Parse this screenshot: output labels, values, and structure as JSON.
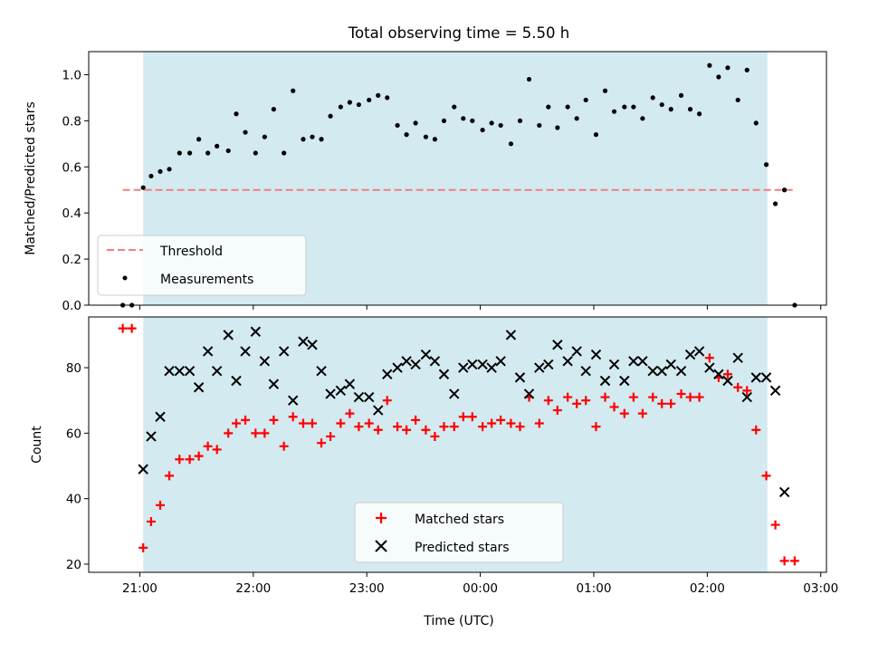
{
  "chart_data": [
    {
      "type": "scatter",
      "title": "Total observing time = 5.50 h",
      "xlabel": "",
      "ylabel": "Matched/Predicted stars",
      "xlim": [
        -0.45,
        6.05
      ],
      "ylim": [
        0.0,
        1.1
      ],
      "yticks": [
        0.0,
        0.2,
        0.4,
        0.6,
        0.8,
        1.0
      ],
      "ytick_labels": [
        "0.0",
        "0.2",
        "0.4",
        "0.6",
        "0.8",
        "1.0"
      ],
      "grid": false,
      "legend_position": "lower-left",
      "shaded_span": {
        "x_start": 0.03,
        "x_end": 5.53,
        "color": "#d3eaf0"
      },
      "threshold": {
        "name": "Threshold",
        "y": 0.5,
        "x_start": -0.15,
        "x_end": 5.78,
        "color": "#f08080"
      },
      "series": [
        {
          "name": "Measurements",
          "color": "#000000",
          "points": [
            [
              -0.15,
              0.0
            ],
            [
              -0.07,
              0.0
            ],
            [
              0.03,
              0.51
            ],
            [
              0.1,
              0.56
            ],
            [
              0.18,
              0.58
            ],
            [
              0.26,
              0.59
            ],
            [
              0.35,
              0.66
            ],
            [
              0.44,
              0.66
            ],
            [
              0.52,
              0.72
            ],
            [
              0.6,
              0.66
            ],
            [
              0.68,
              0.69
            ],
            [
              0.78,
              0.67
            ],
            [
              0.85,
              0.83
            ],
            [
              0.93,
              0.75
            ],
            [
              1.02,
              0.66
            ],
            [
              1.1,
              0.73
            ],
            [
              1.18,
              0.85
            ],
            [
              1.27,
              0.66
            ],
            [
              1.35,
              0.93
            ],
            [
              1.44,
              0.72
            ],
            [
              1.52,
              0.73
            ],
            [
              1.6,
              0.72
            ],
            [
              1.68,
              0.82
            ],
            [
              1.77,
              0.86
            ],
            [
              1.85,
              0.88
            ],
            [
              1.93,
              0.87
            ],
            [
              2.02,
              0.89
            ],
            [
              2.1,
              0.91
            ],
            [
              2.18,
              0.9
            ],
            [
              2.27,
              0.78
            ],
            [
              2.35,
              0.74
            ],
            [
              2.43,
              0.79
            ],
            [
              2.52,
              0.73
            ],
            [
              2.6,
              0.72
            ],
            [
              2.68,
              0.8
            ],
            [
              2.77,
              0.86
            ],
            [
              2.85,
              0.81
            ],
            [
              2.93,
              0.8
            ],
            [
              3.02,
              0.76
            ],
            [
              3.1,
              0.79
            ],
            [
              3.18,
              0.78
            ],
            [
              3.27,
              0.7
            ],
            [
              3.35,
              0.8
            ],
            [
              3.43,
              0.98
            ],
            [
              3.52,
              0.78
            ],
            [
              3.6,
              0.86
            ],
            [
              3.68,
              0.77
            ],
            [
              3.77,
              0.86
            ],
            [
              3.85,
              0.81
            ],
            [
              3.93,
              0.89
            ],
            [
              4.02,
              0.74
            ],
            [
              4.1,
              0.93
            ],
            [
              4.18,
              0.84
            ],
            [
              4.27,
              0.86
            ],
            [
              4.35,
              0.86
            ],
            [
              4.43,
              0.81
            ],
            [
              4.52,
              0.9
            ],
            [
              4.6,
              0.87
            ],
            [
              4.68,
              0.85
            ],
            [
              4.77,
              0.91
            ],
            [
              4.85,
              0.85
            ],
            [
              4.93,
              0.83
            ],
            [
              5.02,
              1.04
            ],
            [
              5.1,
              0.99
            ],
            [
              5.18,
              1.03
            ],
            [
              5.27,
              0.89
            ],
            [
              5.35,
              1.02
            ],
            [
              5.43,
              0.79
            ],
            [
              5.52,
              0.61
            ],
            [
              5.6,
              0.44
            ],
            [
              5.68,
              0.5
            ],
            [
              5.77,
              0.0
            ]
          ]
        }
      ]
    },
    {
      "type": "scatter",
      "title": "",
      "xlabel": "Time (UTC)",
      "ylabel": "Count",
      "xlim": [
        -0.45,
        6.05
      ],
      "ylim": [
        17.5,
        95.5
      ],
      "xticks": [
        0,
        1,
        2,
        3,
        4,
        5,
        6
      ],
      "xtick_labels": [
        "21:00",
        "22:00",
        "23:00",
        "00:00",
        "01:00",
        "02:00",
        "03:00"
      ],
      "yticks": [
        20,
        40,
        60,
        80
      ],
      "ytick_labels": [
        "20",
        "40",
        "60",
        "80"
      ],
      "grid": false,
      "legend_position": "lower-center",
      "shaded_span": {
        "x_start": 0.03,
        "x_end": 5.53,
        "color": "#d3eaf0"
      },
      "series": [
        {
          "name": "Matched stars",
          "color": "#ff0000",
          "marker": "plus",
          "points": [
            [
              -0.15,
              92
            ],
            [
              -0.07,
              92
            ],
            [
              0.03,
              25
            ],
            [
              0.1,
              33
            ],
            [
              0.18,
              38
            ],
            [
              0.26,
              47
            ],
            [
              0.35,
              52
            ],
            [
              0.44,
              52
            ],
            [
              0.52,
              53
            ],
            [
              0.6,
              56
            ],
            [
              0.68,
              55
            ],
            [
              0.78,
              60
            ],
            [
              0.85,
              63
            ],
            [
              0.93,
              64
            ],
            [
              1.02,
              60
            ],
            [
              1.1,
              60
            ],
            [
              1.18,
              64
            ],
            [
              1.27,
              56
            ],
            [
              1.35,
              65
            ],
            [
              1.44,
              63
            ],
            [
              1.52,
              63
            ],
            [
              1.6,
              57
            ],
            [
              1.68,
              59
            ],
            [
              1.77,
              63
            ],
            [
              1.85,
              66
            ],
            [
              1.93,
              62
            ],
            [
              2.02,
              63
            ],
            [
              2.1,
              61
            ],
            [
              2.18,
              70
            ],
            [
              2.27,
              62
            ],
            [
              2.35,
              61
            ],
            [
              2.43,
              64
            ],
            [
              2.52,
              61
            ],
            [
              2.6,
              59
            ],
            [
              2.68,
              62
            ],
            [
              2.77,
              62
            ],
            [
              2.85,
              65
            ],
            [
              2.93,
              65
            ],
            [
              3.02,
              62
            ],
            [
              3.1,
              63
            ],
            [
              3.18,
              64
            ],
            [
              3.27,
              63
            ],
            [
              3.35,
              62
            ],
            [
              3.43,
              71
            ],
            [
              3.52,
              63
            ],
            [
              3.6,
              70
            ],
            [
              3.68,
              67
            ],
            [
              3.77,
              71
            ],
            [
              3.85,
              69
            ],
            [
              3.93,
              70
            ],
            [
              4.02,
              62
            ],
            [
              4.1,
              71
            ],
            [
              4.18,
              68
            ],
            [
              4.27,
              66
            ],
            [
              4.35,
              71
            ],
            [
              4.43,
              66
            ],
            [
              4.52,
              71
            ],
            [
              4.6,
              69
            ],
            [
              4.68,
              69
            ],
            [
              4.77,
              72
            ],
            [
              4.85,
              71
            ],
            [
              4.93,
              71
            ],
            [
              5.02,
              83
            ],
            [
              5.1,
              77
            ],
            [
              5.18,
              78
            ],
            [
              5.27,
              74
            ],
            [
              5.35,
              73
            ],
            [
              5.43,
              61
            ],
            [
              5.52,
              47
            ],
            [
              5.6,
              32
            ],
            [
              5.68,
              21
            ],
            [
              5.77,
              21
            ]
          ]
        },
        {
          "name": "Predicted stars",
          "color": "#000000",
          "marker": "x",
          "points": [
            [
              0.03,
              49
            ],
            [
              0.1,
              59
            ],
            [
              0.18,
              65
            ],
            [
              0.26,
              79
            ],
            [
              0.35,
              79
            ],
            [
              0.44,
              79
            ],
            [
              0.52,
              74
            ],
            [
              0.6,
              85
            ],
            [
              0.68,
              79
            ],
            [
              0.78,
              90
            ],
            [
              0.85,
              76
            ],
            [
              0.93,
              85
            ],
            [
              1.02,
              91
            ],
            [
              1.1,
              82
            ],
            [
              1.18,
              75
            ],
            [
              1.27,
              85
            ],
            [
              1.35,
              70
            ],
            [
              1.44,
              88
            ],
            [
              1.52,
              87
            ],
            [
              1.6,
              79
            ],
            [
              1.68,
              72
            ],
            [
              1.77,
              73
            ],
            [
              1.85,
              75
            ],
            [
              1.93,
              71
            ],
            [
              2.02,
              71
            ],
            [
              2.1,
              67
            ],
            [
              2.18,
              78
            ],
            [
              2.27,
              80
            ],
            [
              2.35,
              82
            ],
            [
              2.43,
              81
            ],
            [
              2.52,
              84
            ],
            [
              2.6,
              82
            ],
            [
              2.68,
              78
            ],
            [
              2.77,
              72
            ],
            [
              2.85,
              80
            ],
            [
              2.93,
              81
            ],
            [
              3.02,
              81
            ],
            [
              3.1,
              80
            ],
            [
              3.18,
              82
            ],
            [
              3.27,
              90
            ],
            [
              3.35,
              77
            ],
            [
              3.43,
              72
            ],
            [
              3.52,
              80
            ],
            [
              3.6,
              81
            ],
            [
              3.68,
              87
            ],
            [
              3.77,
              82
            ],
            [
              3.85,
              85
            ],
            [
              3.93,
              79
            ],
            [
              4.02,
              84
            ],
            [
              4.1,
              76
            ],
            [
              4.18,
              81
            ],
            [
              4.27,
              76
            ],
            [
              4.35,
              82
            ],
            [
              4.43,
              82
            ],
            [
              4.52,
              79
            ],
            [
              4.6,
              79
            ],
            [
              4.68,
              81
            ],
            [
              4.77,
              79
            ],
            [
              4.85,
              84
            ],
            [
              4.93,
              85
            ],
            [
              5.02,
              80
            ],
            [
              5.1,
              78
            ],
            [
              5.18,
              76
            ],
            [
              5.27,
              83
            ],
            [
              5.35,
              71
            ],
            [
              5.43,
              77
            ],
            [
              5.52,
              77
            ],
            [
              5.6,
              73
            ],
            [
              5.68,
              42
            ]
          ]
        }
      ]
    }
  ]
}
